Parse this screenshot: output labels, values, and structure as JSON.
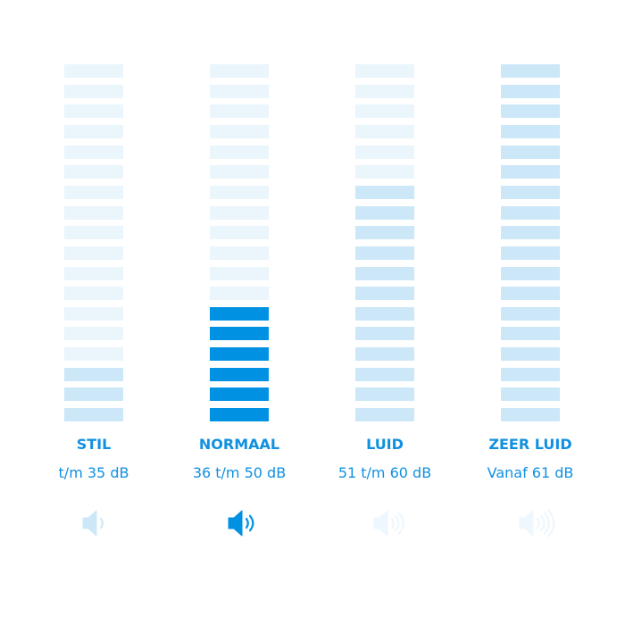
{
  "colors": {
    "empty": "#eaf5fc",
    "light": "#cce8f8",
    "active": "#0091e3",
    "text": "#1090e0"
  },
  "segments_total": 18,
  "levels": [
    {
      "label": "STIL",
      "range": "t/m 35 dB",
      "filled": 3,
      "fill_color": "light",
      "icon": "speaker-1-wave-icon",
      "icon_color": "#cce8f8",
      "waves": 1
    },
    {
      "label": "NORMAAL",
      "range": "36 t/m 50 dB",
      "filled": 6,
      "fill_color": "active",
      "icon": "speaker-2-waves-icon",
      "icon_color": "#0091e3",
      "waves": 2
    },
    {
      "label": "LUID",
      "range": "51 t/m 60 dB",
      "filled": 12,
      "fill_color": "light",
      "icon": "speaker-3-waves-icon",
      "icon_color": "#eef7fd",
      "waves": 3
    },
    {
      "label": "ZEER LUID",
      "range": "Vanaf 61 dB",
      "filled": 18,
      "fill_color": "light",
      "icon": "speaker-4-waves-icon",
      "icon_color": "#eef7fd",
      "waves": 4
    }
  ]
}
